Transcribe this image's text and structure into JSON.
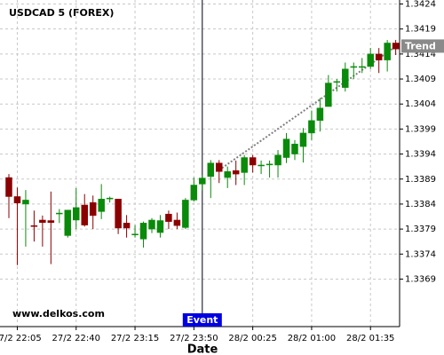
{
  "chart_data": {
    "type": "candlestick",
    "title": "USDCAD 5 (FOREX)",
    "x_label": "Date",
    "watermark": "www.delkos.com",
    "categories": [
      null,
      "27/2 22:05",
      null,
      null,
      null,
      null,
      null,
      null,
      "27/2 22:40",
      null,
      null,
      null,
      null,
      null,
      null,
      "27/2 23:15",
      null,
      null,
      null,
      null,
      null,
      null,
      "27/2 23:50",
      null,
      null,
      null,
      null,
      null,
      null,
      "28/2 00:25",
      null,
      null,
      null,
      null,
      null,
      null,
      "28/2 01:00",
      null,
      null,
      null,
      null,
      null,
      null,
      "28/2 01:35",
      null,
      null,
      null
    ],
    "open": [
      1.33893,
      1.33855,
      1.3384,
      1.33797,
      1.33808,
      1.33807,
      1.33822,
      1.33777,
      1.33808,
      1.33838,
      1.33843,
      1.33825,
      1.33852,
      1.3385,
      1.33802,
      1.3378,
      1.3377,
      1.3379,
      1.33783,
      1.3382,
      1.33808,
      1.33793,
      1.33848,
      1.3388,
      1.33895,
      1.33922,
      1.33893,
      1.33907,
      1.33903,
      1.33933,
      1.33918,
      1.3392,
      1.33918,
      1.33933,
      1.3394,
      1.33955,
      1.33982,
      1.34007,
      1.34035,
      1.34085,
      1.34073,
      1.34115,
      1.34115,
      1.34115,
      1.3414,
      1.34128,
      1.34162
    ],
    "high": [
      1.339,
      1.33873,
      1.33868,
      1.33827,
      1.33817,
      1.33865,
      1.3383,
      1.33828,
      1.33872,
      1.3386,
      1.33857,
      1.3388,
      1.33855,
      1.3385,
      1.33818,
      1.33798,
      1.33805,
      1.33812,
      1.33818,
      1.33827,
      1.33823,
      1.33852,
      1.33893,
      1.33898,
      1.33928,
      1.33928,
      1.33915,
      1.33927,
      1.33938,
      1.33938,
      1.33927,
      1.33927,
      1.33948,
      1.33982,
      1.33968,
      1.33992,
      1.34027,
      1.34052,
      1.34098,
      1.3409,
      1.34123,
      1.34123,
      1.34132,
      1.34152,
      1.34152,
      1.34168,
      1.34168
    ],
    "low": [
      1.33812,
      1.33718,
      1.33755,
      1.33765,
      1.33755,
      1.3372,
      1.33802,
      1.33773,
      1.3379,
      1.33795,
      1.3379,
      1.3381,
      1.33843,
      1.3378,
      1.33773,
      1.33773,
      1.33753,
      1.33782,
      1.33773,
      1.3379,
      1.3379,
      1.3379,
      1.33845,
      1.33867,
      1.33852,
      1.33882,
      1.33872,
      1.33878,
      1.33878,
      1.33903,
      1.339,
      1.33893,
      1.33893,
      1.33922,
      1.33928,
      1.33923,
      1.33968,
      1.33985,
      1.34035,
      1.34065,
      1.34065,
      1.3409,
      1.34102,
      1.3411,
      1.34102,
      1.34105,
      1.34138
    ],
    "close": [
      1.33855,
      1.33842,
      1.33848,
      1.33795,
      1.33803,
      1.33803,
      1.33822,
      1.33828,
      1.33833,
      1.33798,
      1.33817,
      1.3385,
      1.33852,
      1.33792,
      1.33792,
      1.3378,
      1.33802,
      1.33808,
      1.33807,
      1.33805,
      1.33797,
      1.33848,
      1.33878,
      1.33892,
      1.33922,
      1.33905,
      1.33905,
      1.339,
      1.33933,
      1.33918,
      1.33918,
      1.3392,
      1.33938,
      1.3397,
      1.3396,
      1.33982,
      1.34007,
      1.34032,
      1.34082,
      1.34085,
      1.3411,
      1.34115,
      1.34115,
      1.3414,
      1.34128,
      1.34162,
      1.3415
    ],
    "up_color": "#0a8a0a",
    "down_color": "#8b0000",
    "ylim": [
      1.33595,
      1.34248
    ],
    "yticks": [
      1.3369,
      1.3374,
      1.3379,
      1.3384,
      1.3389,
      1.3394,
      1.3399,
      1.3404,
      1.3409,
      1.3414,
      1.3419,
      1.3424
    ],
    "grid": true,
    "event": {
      "label": "Event",
      "index": 23
    },
    "trend": {
      "label": "Trend",
      "start_index": 25,
      "start_value": 1.33908,
      "end_index": 46,
      "end_value": 1.34155
    }
  }
}
